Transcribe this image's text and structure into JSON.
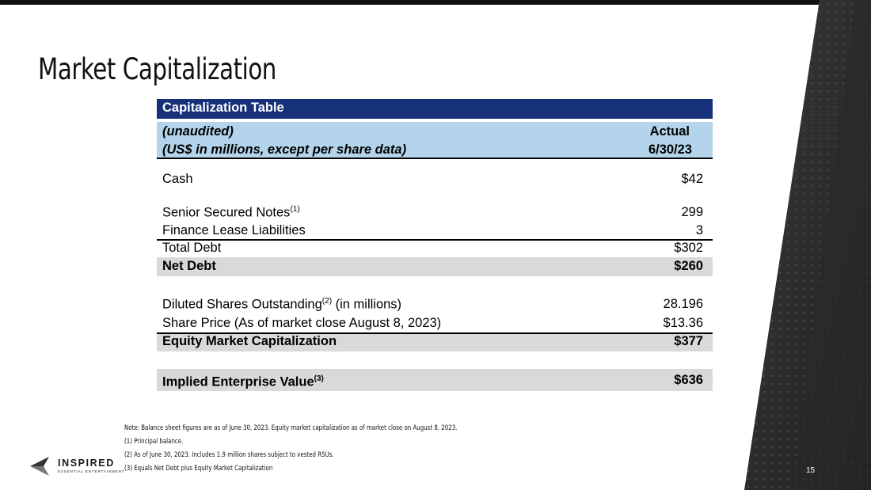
{
  "title": "Market Capitalization",
  "table": {
    "header": "Capitalization Table",
    "sub1_left": "(unaudited)",
    "sub1_right": "Actual",
    "sub2_left": "(US$ in millions, except per share data)",
    "sub2_right": "6/30/23",
    "rows": [
      {
        "label": "Cash",
        "value": "$42"
      },
      {
        "label": "Senior Secured Notes",
        "sup": "(1)",
        "value": "299"
      },
      {
        "label": "Finance Lease Liabilities",
        "value": "3"
      },
      {
        "label": "Total Debt",
        "value": "$302"
      },
      {
        "label": "Net Debt",
        "value": "$260"
      },
      {
        "label": "Diluted Shares Outstanding",
        "sup": "(2)",
        "suffix": " (in millions)",
        "value": "28.196"
      },
      {
        "label": "Share Price (As of market close August 8, 2023)",
        "value": "$13.36"
      },
      {
        "label": "Equity Market Capitalization",
        "value": "$377"
      },
      {
        "label": "Implied Enterprise Value",
        "sup": "(3)",
        "value": "$636"
      }
    ]
  },
  "notes": [
    "Note: Balance sheet figures are as of June 30, 2023. Equity market capitalization as of market close on August 8, 2023.",
    "(1) Principal balance.",
    "(2) As of June 30, 2023.  Includes 1.9 million shares subject to vested RSUs.",
    "(3) Equals Net Debt plus Equity Market Capitalization"
  ],
  "logo": {
    "name": "INSPIRED",
    "tagline": "ESSENTIAL ENTERTAINMENT"
  },
  "page_number": "15"
}
